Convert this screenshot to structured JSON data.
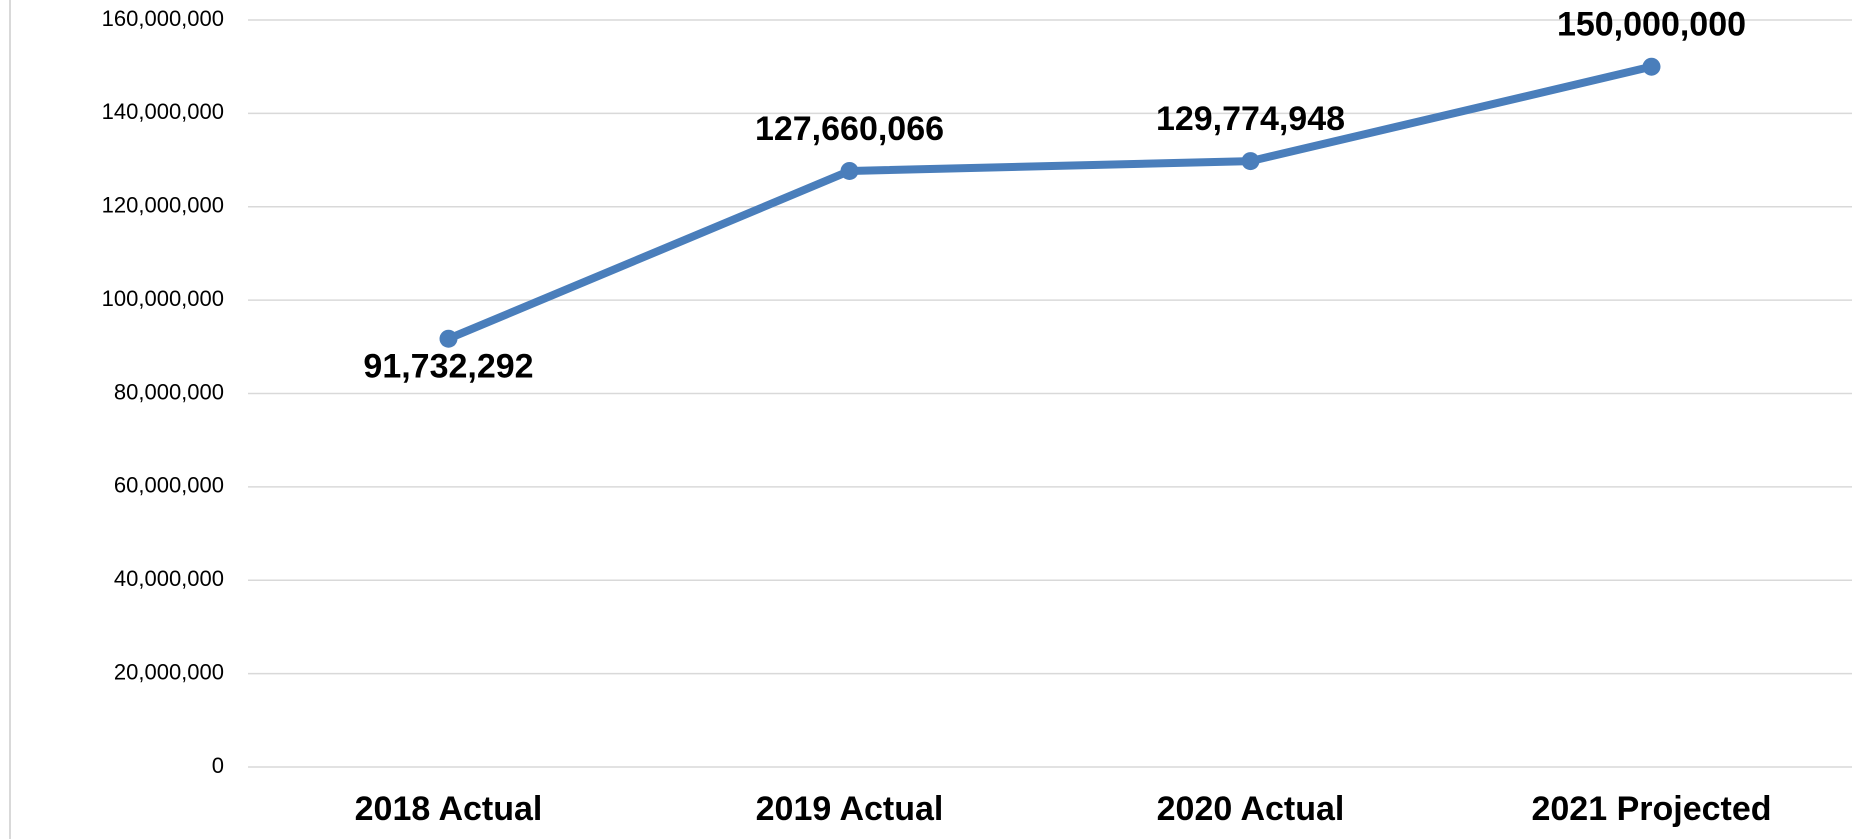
{
  "chart_data": {
    "type": "line",
    "categories": [
      "2018 Actual",
      "2019 Actual",
      "2020 Actual",
      "2021 Projected"
    ],
    "series": [
      {
        "color": "#4a7ebb",
        "values": [
          91732292,
          127660066,
          129774948,
          150000000
        ],
        "value_labels": [
          "91,732,292",
          "127,660,066",
          "129,774,948",
          "150,000,000"
        ]
      }
    ],
    "ylim": [
      0,
      160000000
    ],
    "yticks": [
      {
        "value": 0,
        "label": "0"
      },
      {
        "value": 20000000,
        "label": "20,000,000"
      },
      {
        "value": 40000000,
        "label": "40,000,000"
      },
      {
        "value": 60000000,
        "label": "60,000,000"
      },
      {
        "value": 80000000,
        "label": "80,000,000"
      },
      {
        "value": 100000000,
        "label": "100,000,000"
      },
      {
        "value": 120000000,
        "label": "120,000,000"
      },
      {
        "value": 140000000,
        "label": "140,000,000"
      },
      {
        "value": 160000000,
        "label": "160,000,000"
      }
    ],
    "grid": true
  }
}
